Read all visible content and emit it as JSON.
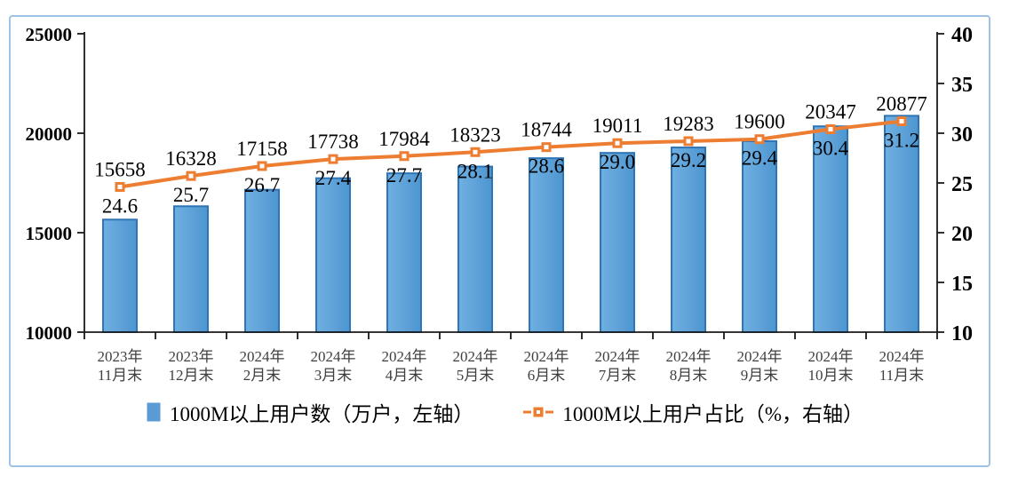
{
  "chart_data": {
    "type": "combo-bar-line",
    "categories": [
      [
        "2023年",
        "11月末"
      ],
      [
        "2023年",
        "12月末"
      ],
      [
        "2024年",
        "2月末"
      ],
      [
        "2024年",
        "3月末"
      ],
      [
        "2024年",
        "4月末"
      ],
      [
        "2024年",
        "5月末"
      ],
      [
        "2024年",
        "6月末"
      ],
      [
        "2024年",
        "7月末"
      ],
      [
        "2024年",
        "8月末"
      ],
      [
        "2024年",
        "9月末"
      ],
      [
        "2024年",
        "10月末"
      ],
      [
        "2024年",
        "11月末"
      ]
    ],
    "series": [
      {
        "name": "1000M以上用户数（万户，左轴）",
        "type": "bar",
        "axis": "left",
        "values": [
          15658,
          16328,
          17158,
          17738,
          17984,
          18323,
          18744,
          19011,
          19283,
          19600,
          20347,
          20877
        ]
      },
      {
        "name": "1000M以上用户占比（%，右轴）",
        "type": "line",
        "axis": "right",
        "values": [
          "24.6",
          "25.7",
          "26.7",
          "27.4",
          "27.7",
          "28.1",
          "28.6",
          "29.0",
          "29.2",
          "29.4",
          "30.4",
          "31.2"
        ]
      }
    ],
    "left_axis": {
      "min": 10000,
      "max": 25000,
      "ticks": [
        "10000",
        "15000",
        "20000",
        "25000"
      ]
    },
    "right_axis": {
      "min": 10,
      "max": 40,
      "ticks": [
        "10",
        "15",
        "20",
        "25",
        "30",
        "35",
        "40"
      ]
    },
    "legend_position": "bottom",
    "grid": "off",
    "colors": {
      "bar_fill": "#5b9bd5",
      "bar_fill_light": "#6fb0e2",
      "bar_fill_dark": "#4e95cf",
      "bar_border": "#2e75b6",
      "line": "#ed7d31",
      "marker_center": "#ffffff",
      "frame_border": "#9dc3e6",
      "axis": "#1a1a1a",
      "x_label": "#3f3f3f"
    }
  }
}
